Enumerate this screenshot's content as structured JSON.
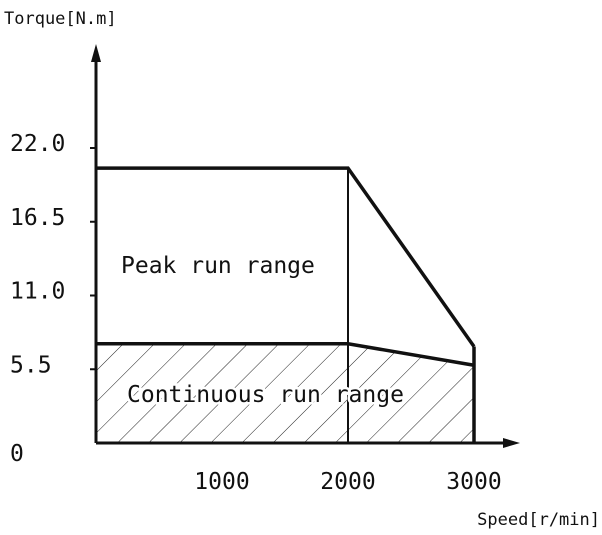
{
  "chart_data": {
    "type": "area",
    "title": "",
    "ylabel": "Torque[N.m]",
    "xlabel": "Speed[r/min]",
    "xlim": [
      0,
      3000
    ],
    "ylim": [
      0,
      22.0
    ],
    "x_ticks": [
      {
        "value": 1000,
        "label": "1000"
      },
      {
        "value": 2000,
        "label": "2000"
      },
      {
        "value": 3000,
        "label": "3000"
      }
    ],
    "y_ticks": [
      {
        "value": 0,
        "label": "0"
      },
      {
        "value": 5.5,
        "label": "5.5"
      },
      {
        "value": 11.0,
        "label": "11.0"
      },
      {
        "value": 16.5,
        "label": "16.5"
      },
      {
        "value": 22.0,
        "label": "22.0"
      }
    ],
    "series": [
      {
        "name": "Peak run range",
        "x": [
          0,
          2000,
          3000
        ],
        "y": [
          20.5,
          20.5,
          7.2
        ]
      },
      {
        "name": "Continuous run range",
        "x": [
          0,
          2000,
          3000
        ],
        "y": [
          7.4,
          7.4,
          5.8
        ]
      }
    ],
    "annotations": [
      {
        "text": "Peak run range",
        "region": "peak"
      },
      {
        "text": "Continuous run range",
        "region": "continuous"
      }
    ],
    "grid": false,
    "legend": "none"
  }
}
